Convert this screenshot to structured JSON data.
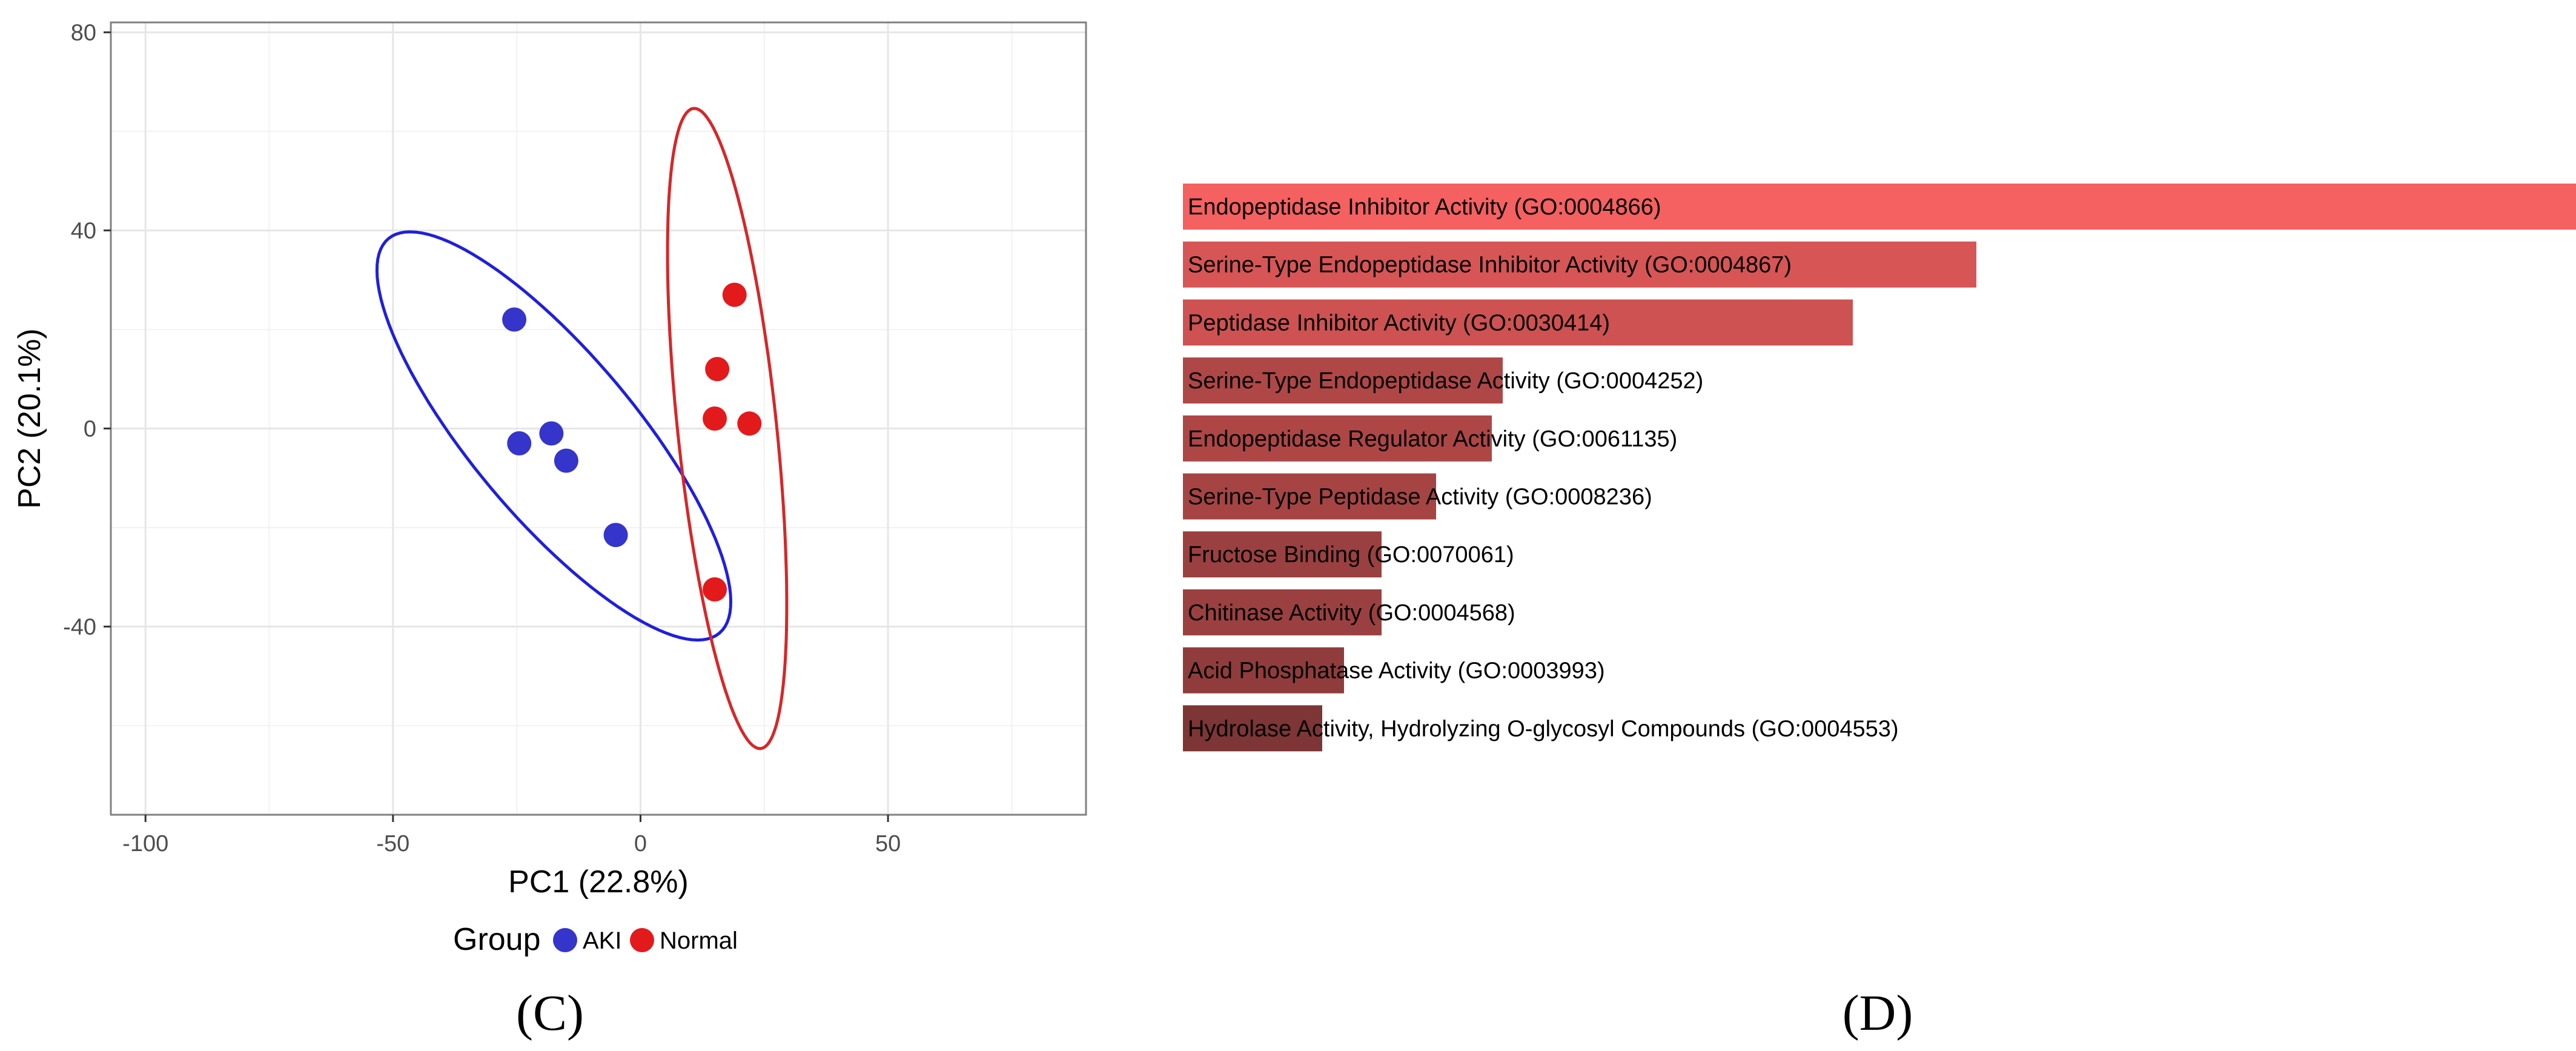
{
  "chart_data": [
    {
      "type": "scatter",
      "panel_label": "(C)",
      "xlabel": "PC1 (22.8%)",
      "ylabel": "PC2 (20.1%)",
      "xlim": [
        -107,
        90
      ],
      "ylim": [
        -78,
        82
      ],
      "xticks": [
        -100,
        -50,
        0,
        50
      ],
      "xtick_labels": [
        "-100",
        "-50",
        "0",
        "50"
      ],
      "yticks": [
        -40,
        0,
        40,
        80
      ],
      "ytick_labels": [
        "-40",
        "0",
        "40",
        "80"
      ],
      "minor_x": [
        -75,
        -25,
        25,
        75
      ],
      "minor_y": [
        -60,
        -20,
        20,
        60
      ],
      "grid": true,
      "legend": {
        "title": "Group",
        "placement": "bottom",
        "entries": [
          {
            "label": "AKI",
            "color": "#3535cc"
          },
          {
            "label": "Normal",
            "color": "#e31a1c"
          }
        ]
      },
      "series": [
        {
          "name": "AKI",
          "color": "#3535cc",
          "points": [
            [
              -25.5,
              22
            ],
            [
              -24.5,
              -3
            ],
            [
              -18,
              -1
            ],
            [
              -15,
              -6.5
            ],
            [
              -5,
              -21.5
            ]
          ],
          "ellipse_color": "#1f1fdf",
          "ellipse": {
            "cx": -17.5,
            "cy": -1.5,
            "rx": 52,
            "ry": 16.5,
            "angle_deg": -50
          }
        },
        {
          "name": "Normal",
          "color": "#e31a1c",
          "points": [
            [
              19,
              27
            ],
            [
              15.5,
              12
            ],
            [
              15,
              2
            ],
            [
              22,
              1
            ],
            [
              15,
              -32.5
            ]
          ],
          "ellipse_color": "#d62728",
          "ellipse": {
            "cx": 17.5,
            "cy": 0,
            "rx": 65,
            "ry": 10,
            "angle_deg": -84
          }
        }
      ]
    },
    {
      "type": "bar",
      "orientation": "horizontal",
      "panel_label": "(D)",
      "xlim": [
        0,
        11.5
      ],
      "color_low": "#7d3535",
      "color_high": "#f56060",
      "categories": [
        "Endopeptidase Inhibitor Activity (GO:0004866)",
        "Serine-Type Endopeptidase Inhibitor Activity (GO:0004867)",
        "Peptidase Inhibitor Activity (GO:0030414)",
        "Serine-Type Endopeptidase Activity (GO:0004252)",
        "Endopeptidase Regulator Activity (GO:0061135)",
        "Serine-Type Peptidase Activity (GO:0008236)",
        "Fructose Binding (GO:0070061)",
        "Chitinase Activity (GO:0004568)",
        "Acid Phosphatase Activity (GO:0003993)",
        "Hydrolase Activity, Hydrolyzing O-glycosyl Compounds (GO:0004553)"
      ],
      "values": [
        11.5,
        6.55,
        5.53,
        2.64,
        2.55,
        2.09,
        1.64,
        1.64,
        1.33,
        1.15
      ]
    }
  ]
}
